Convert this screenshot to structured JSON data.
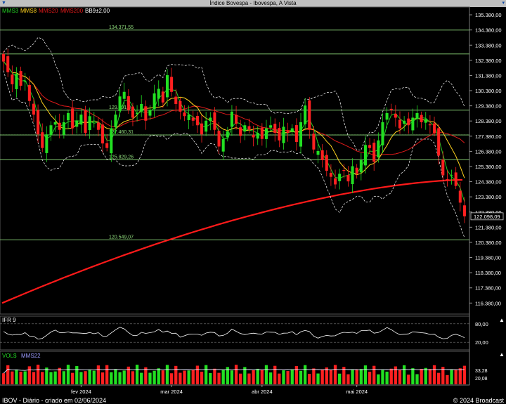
{
  "window": {
    "title": "Índice Bovespa - Ibovespa, A Vista"
  },
  "footer": {
    "left": "IBOV - Diário - criado em 02/06/2024",
    "right": "© 2024 Broadcast"
  },
  "legend_main": [
    {
      "label": "MMS3",
      "color": "#22cc22"
    },
    {
      "label": "MMS8",
      "color": "#ffd21e"
    },
    {
      "label": "MMS20",
      "color": "#e11a1a"
    },
    {
      "label": "MMS200",
      "color": "#e11a1a"
    },
    {
      "label": "BB9±2,00",
      "color": "#ffffff"
    }
  ],
  "chart_data": [
    {
      "type": "candlestick",
      "panel": "price",
      "x_labels": [
        "fev 2024",
        "mar 2024",
        "abr 2024",
        "mai 2024"
      ],
      "y_ticks": [
        116380,
        117380,
        118380,
        119380,
        120380,
        121380,
        122380,
        123380,
        124380,
        125380,
        126380,
        127380,
        128380,
        129380,
        130380,
        131380,
        132380,
        133380,
        134380,
        135380
      ],
      "y_tick_labels": [
        "116.380,00",
        "117.380,00",
        "118.380,00",
        "119.380,00",
        "120.380,00",
        "121.380,00",
        "122.380,00",
        "123.380,00",
        "124.380,00",
        "125.380,00",
        "126.380,00",
        "127.380,00",
        "128.380,00",
        "129.380,00",
        "130.380,00",
        "131.380,00",
        "132.380,00",
        "133.380,00",
        "134.380,00",
        "135.380,00"
      ],
      "ylim": [
        115700,
        135800
      ],
      "last_price_label": "122.098,09",
      "last_price": 122098.09,
      "horizontal_levels": [
        {
          "value": 134371.55,
          "label": "134.371,55"
        },
        {
          "value": 132800,
          "label": ""
        },
        {
          "value": 129091.3,
          "label": "129.091,3"
        },
        {
          "value": 127460.31,
          "label": "127.460,31"
        },
        {
          "value": 125829.26,
          "label": "125.829,26"
        },
        {
          "value": 120549.07,
          "label": "120.549,07"
        }
      ],
      "closes": [
        132300,
        131600,
        130800,
        131500,
        130700,
        131000,
        129700,
        128800,
        127500,
        126600,
        127500,
        128100,
        128300,
        127800,
        128300,
        128900,
        127900,
        128400,
        128800,
        127600,
        128700,
        128400,
        127800,
        126900,
        126600,
        127900,
        128800,
        130000,
        130300,
        129100,
        128600,
        128900,
        129500,
        128400,
        129100,
        130200,
        130500,
        129600,
        131400,
        130300,
        129500,
        129000,
        128700,
        128800,
        128400,
        128100,
        127500,
        128400,
        128600,
        127800,
        126700,
        127200,
        127700,
        129000,
        128200,
        127400,
        128100,
        127800,
        127300,
        127600,
        127200,
        127900,
        128100,
        127600,
        127100,
        128000,
        127600,
        127900,
        127000,
        128300,
        129400,
        127800,
        126500,
        126400,
        125800,
        125100,
        124700,
        124200,
        124900,
        125100,
        124400,
        125400,
        124900,
        125800,
        126800,
        126600,
        125700,
        127100,
        128300,
        128900,
        129100,
        128600,
        127900,
        128400,
        128100,
        128600,
        128900,
        128300,
        128500,
        128100,
        127600,
        126100,
        124800,
        124500,
        124800,
        124100,
        123000,
        122098
      ]
    },
    {
      "type": "line",
      "panel": "IFR 9",
      "title": "IFR 9",
      "y_ticks": [
        80,
        20
      ],
      "y_tick_labels": [
        "80,00",
        "20,00"
      ]
    },
    {
      "type": "bar",
      "panel": "VOL$",
      "series_names": [
        "VOL$",
        "MMS22"
      ],
      "y_tick_labels": [
        "33,28",
        "20,08"
      ]
    }
  ]
}
